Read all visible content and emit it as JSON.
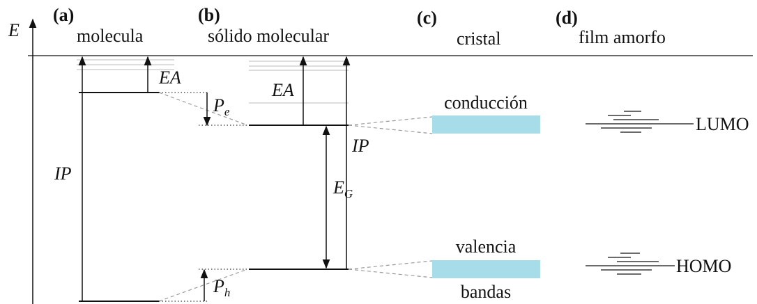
{
  "axis_label": "E",
  "panels": [
    {
      "tag": "(a)",
      "title": "molecula"
    },
    {
      "tag": "(b)",
      "title": "sólido molecular"
    },
    {
      "tag": "(c)",
      "title": "cristal"
    },
    {
      "tag": "(d)",
      "title": "film amorfo"
    }
  ],
  "labels": {
    "ea_a": "EA",
    "ip_a": "IP",
    "pe": "P",
    "pe_sub": "e",
    "ph": "P",
    "ph_sub": "h",
    "ea_b": "EA",
    "ip_b": "IP",
    "eg": "E",
    "eg_sub": "G",
    "conduction": "conducción",
    "valence": "valencia",
    "bands": "bandas",
    "lumo": "LUMO",
    "homo": "HOMO"
  }
}
